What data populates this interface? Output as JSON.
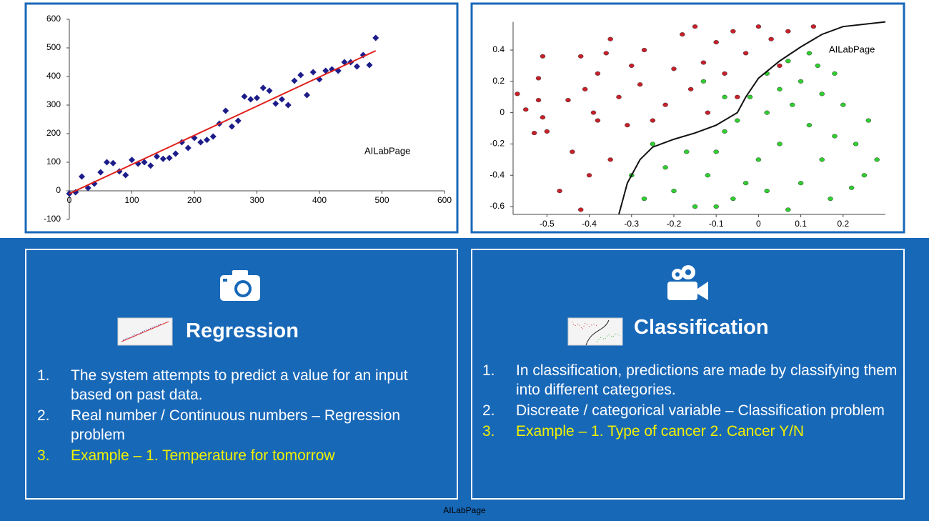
{
  "chart_data": [
    {
      "type": "scatter",
      "annotation": "AILabPage",
      "xlim": [
        0,
        600
      ],
      "ylim": [
        -100,
        600
      ],
      "xticks": [
        0,
        100,
        200,
        300,
        400,
        500,
        600
      ],
      "yticks": [
        -100,
        0,
        100,
        200,
        300,
        400,
        500,
        600
      ],
      "series": [
        {
          "mode": "markers",
          "color": "#1c1c8a",
          "x": [
            0,
            10,
            20,
            30,
            40,
            50,
            60,
            70,
            80,
            90,
            100,
            110,
            120,
            130,
            140,
            150,
            160,
            170,
            180,
            190,
            200,
            210,
            220,
            230,
            240,
            250,
            260,
            270,
            280,
            290,
            300,
            310,
            320,
            330,
            340,
            350,
            360,
            370,
            380,
            390,
            400,
            410,
            420,
            430,
            440,
            450,
            460,
            470,
            480,
            490
          ],
          "values": [
            -10,
            -5,
            50,
            10,
            25,
            65,
            100,
            97,
            68,
            55,
            108,
            95,
            100,
            88,
            120,
            112,
            115,
            130,
            170,
            150,
            185,
            170,
            178,
            190,
            235,
            280,
            225,
            245,
            330,
            320,
            325,
            360,
            350,
            305,
            320,
            300,
            385,
            405,
            335,
            415,
            390,
            420,
            425,
            420,
            450,
            450,
            435,
            475,
            440,
            535
          ]
        },
        {
          "mode": "line",
          "color": "#e0201c",
          "x": [
            0,
            490
          ],
          "values": [
            -10,
            490
          ]
        }
      ]
    },
    {
      "type": "scatter",
      "annotation": "AILabPage",
      "xlim": [
        -0.58,
        0.3
      ],
      "ylim": [
        -0.65,
        0.58
      ],
      "xticks": [
        -0.5,
        -0.4,
        -0.3,
        -0.2,
        -0.1,
        0,
        0.1,
        0.2
      ],
      "yticks": [
        -0.6,
        -0.4,
        -0.2,
        0,
        0.2,
        0.4
      ],
      "series": [
        {
          "mode": "markers",
          "color": "#c8202a",
          "x": [
            -0.51,
            -0.52,
            -0.52,
            -0.55,
            -0.51,
            -0.53,
            -0.5,
            -0.47,
            -0.45,
            -0.42,
            -0.41,
            -0.38,
            -0.38,
            -0.36,
            -0.35,
            -0.33,
            -0.31,
            -0.3,
            -0.28,
            -0.27,
            -0.25,
            -0.22,
            -0.2,
            -0.18,
            -0.16,
            -0.15,
            -0.13,
            -0.12,
            -0.1,
            -0.08,
            -0.06,
            -0.05,
            -0.03,
            0.0,
            0.03,
            0.05,
            0.07,
            -0.4,
            -0.42,
            -0.44,
            -0.35,
            -0.39,
            0.13,
            -0.57
          ],
          "values": [
            0.36,
            0.22,
            0.08,
            0.02,
            -0.03,
            -0.13,
            -0.12,
            -0.5,
            0.08,
            0.36,
            0.15,
            0.25,
            -0.05,
            0.38,
            0.47,
            0.1,
            -0.08,
            0.3,
            0.18,
            0.4,
            -0.05,
            0.05,
            0.28,
            0.5,
            0.15,
            0.55,
            0.32,
            0.0,
            0.45,
            0.25,
            0.52,
            0.1,
            0.38,
            0.55,
            0.47,
            0.3,
            0.52,
            -0.4,
            -0.62,
            -0.25,
            -0.3,
            0.0,
            0.55,
            0.12
          ]
        },
        {
          "mode": "markers",
          "color": "#2fcf2f",
          "x": [
            0.12,
            0.14,
            0.18,
            0.1,
            0.15,
            0.2,
            0.05,
            0.08,
            0.02,
            -0.02,
            -0.05,
            0.12,
            0.18,
            0.23,
            0.26,
            0.28,
            0.25,
            0.22,
            0.15,
            0.1,
            0.05,
            0.0,
            -0.03,
            -0.06,
            -0.1,
            -0.12,
            -0.15,
            -0.17,
            -0.2,
            -0.22,
            -0.25,
            -0.27,
            -0.3,
            -0.1,
            0.07,
            -0.08,
            0.02,
            0.17,
            -0.13,
            -0.08,
            0.02,
            0.07
          ],
          "values": [
            0.38,
            0.3,
            0.25,
            0.2,
            0.12,
            0.05,
            0.15,
            0.05,
            0.0,
            0.1,
            -0.05,
            -0.08,
            -0.15,
            -0.2,
            -0.05,
            -0.3,
            -0.4,
            -0.48,
            -0.3,
            -0.45,
            -0.2,
            -0.3,
            -0.45,
            -0.55,
            -0.25,
            -0.4,
            -0.6,
            -0.25,
            -0.5,
            -0.35,
            -0.2,
            -0.55,
            -0.4,
            -0.6,
            -0.62,
            -0.12,
            -0.5,
            -0.55,
            0.2,
            0.1,
            0.25,
            0.33
          ]
        },
        {
          "mode": "line",
          "color": "#111111",
          "x": [
            -0.33,
            -0.31,
            -0.28,
            -0.25,
            -0.2,
            -0.15,
            -0.1,
            -0.05,
            -0.03,
            0.0,
            0.05,
            0.1,
            0.15,
            0.2,
            0.3
          ],
          "values": [
            -0.65,
            -0.45,
            -0.3,
            -0.22,
            -0.17,
            -0.13,
            -0.08,
            0.0,
            0.1,
            0.22,
            0.33,
            0.42,
            0.5,
            0.55,
            0.58
          ]
        }
      ]
    }
  ],
  "panels": [
    {
      "title": "Regression",
      "items": [
        {
          "number": "1.",
          "text": "The system attempts to predict a value for  an input based on past data."
        },
        {
          "number": "2.",
          "text": "Real number / Continuous numbers – Regression problem"
        },
        {
          "number": "3.",
          "text": "Example – 1. Temperature for tomorrow"
        }
      ]
    },
    {
      "title": "Classification",
      "items": [
        {
          "number": "1.",
          "text": "In classification, predictions are made by classifying them into different categories."
        },
        {
          "number": "2.",
          "text": "Discreate / categorical variable – Classification problem"
        },
        {
          "number": "3.",
          "text": "Example – 1. Type of cancer   2. Cancer Y/N"
        }
      ]
    }
  ],
  "footer": "AILabPage"
}
